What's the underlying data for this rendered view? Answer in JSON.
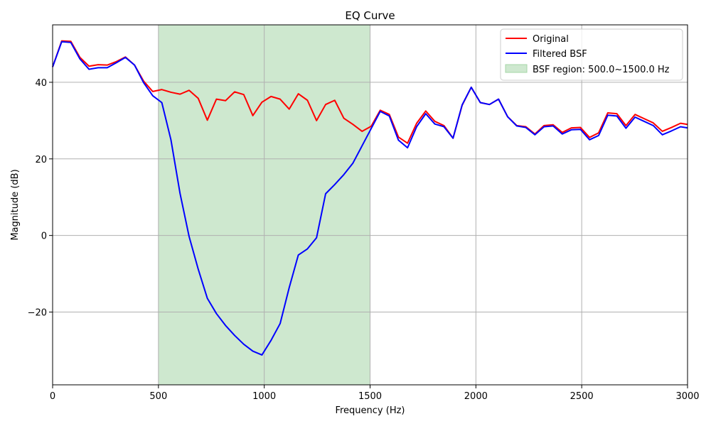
{
  "chart_data": {
    "type": "line",
    "title": "EQ Curve",
    "xlabel": "Frequency (Hz)",
    "ylabel": "Magnitude (dB)",
    "xlim": [
      0,
      3000
    ],
    "ylim": [
      -39,
      55
    ],
    "xticks": [
      0,
      500,
      1000,
      1500,
      2000,
      2500,
      3000
    ],
    "xtick_labels": [
      "0",
      "500",
      "1000",
      "1500",
      "2000",
      "2500",
      "3000"
    ],
    "yticks": [
      -20,
      0,
      20,
      40
    ],
    "ytick_labels": [
      "−20",
      "0",
      "20",
      "40"
    ],
    "grid": true,
    "legend_position": "top-right",
    "shaded_region": {
      "label": "BSF region: 500.0~1500.0 Hz",
      "x_range": [
        500,
        1500
      ],
      "color": "#a5d6a7"
    },
    "series": [
      {
        "name": "Original",
        "color": "#ff0000",
        "x": [
          0,
          43,
          86,
          129,
          172,
          215,
          258,
          301,
          344,
          387,
          430,
          473,
          516,
          559,
          602,
          645,
          688,
          731,
          774,
          817,
          860,
          903,
          946,
          989,
          1032,
          1075,
          1118,
          1161,
          1204,
          1247,
          1290,
          1333,
          1376,
          1419,
          1462,
          1505,
          1548,
          1591,
          1634,
          1677,
          1720,
          1763,
          1806,
          1849,
          1892,
          1935,
          1978,
          2021,
          2064,
          2107,
          2150,
          2193,
          2236,
          2279,
          2322,
          2365,
          2408,
          2451,
          2494,
          2537,
          2580,
          2623,
          2666,
          2709,
          2752,
          2795,
          2838,
          2881,
          2924,
          2967,
          3000
        ],
        "values": [
          44,
          50.8,
          50.7,
          46.5,
          44.2,
          44.6,
          44.5,
          45.4,
          46.6,
          44.5,
          40.3,
          37.6,
          38.1,
          37.4,
          36.9,
          37.9,
          35.8,
          30.1,
          35.6,
          35.2,
          37.5,
          36.8,
          31.3,
          34.8,
          36.3,
          35.6,
          33,
          37,
          35.3,
          30,
          34.2,
          35.3,
          30.6,
          29,
          27.2,
          28.5,
          32.7,
          31.6,
          25.7,
          24.1,
          29.3,
          32.5,
          29.8,
          28.7,
          25.4,
          34,
          38.7,
          34.7,
          34.2,
          35.6,
          31,
          28.7,
          28.4,
          26.5,
          28.7,
          28.9,
          26.9,
          28.1,
          28.2,
          25.6,
          26.8,
          32,
          31.8,
          28.7,
          31.6,
          30.5,
          29.4,
          27.2,
          28.2,
          29.3,
          29
        ]
      },
      {
        "name": "Filtered BSF",
        "color": "#0000ff",
        "x": [
          0,
          43,
          86,
          129,
          172,
          215,
          258,
          301,
          344,
          387,
          430,
          473,
          516,
          559,
          602,
          645,
          688,
          731,
          774,
          817,
          860,
          903,
          946,
          989,
          1032,
          1075,
          1118,
          1161,
          1204,
          1247,
          1290,
          1333,
          1376,
          1419,
          1462,
          1505,
          1548,
          1591,
          1634,
          1677,
          1720,
          1763,
          1806,
          1849,
          1892,
          1935,
          1978,
          2021,
          2064,
          2107,
          2150,
          2193,
          2236,
          2279,
          2322,
          2365,
          2408,
          2451,
          2494,
          2537,
          2580,
          2623,
          2666,
          2709,
          2752,
          2795,
          2838,
          2881,
          2924,
          2967,
          3000
        ],
        "values": [
          44,
          50.6,
          50.4,
          46.1,
          43.4,
          43.8,
          43.8,
          45.1,
          46.5,
          44.5,
          39.9,
          36.5,
          34.7,
          25,
          11,
          -0.3,
          -8.8,
          -16.4,
          -20.4,
          -23.5,
          -26.1,
          -28.4,
          -30.2,
          -31.2,
          -27.4,
          -23,
          -13.6,
          -5.1,
          -3.5,
          -0.6,
          10.9,
          13.3,
          15.9,
          18.9,
          23.4,
          27.9,
          32.4,
          31.2,
          24.9,
          22.9,
          28.4,
          31.8,
          29.1,
          28.4,
          25.4,
          34.1,
          38.7,
          34.7,
          34.2,
          35.6,
          31,
          28.6,
          28.2,
          26.3,
          28.4,
          28.6,
          26.5,
          27.6,
          27.7,
          25,
          26.1,
          31.4,
          31.2,
          28,
          30.9,
          29.8,
          28.7,
          26.3,
          27.3,
          28.4,
          28.1
        ]
      }
    ]
  }
}
